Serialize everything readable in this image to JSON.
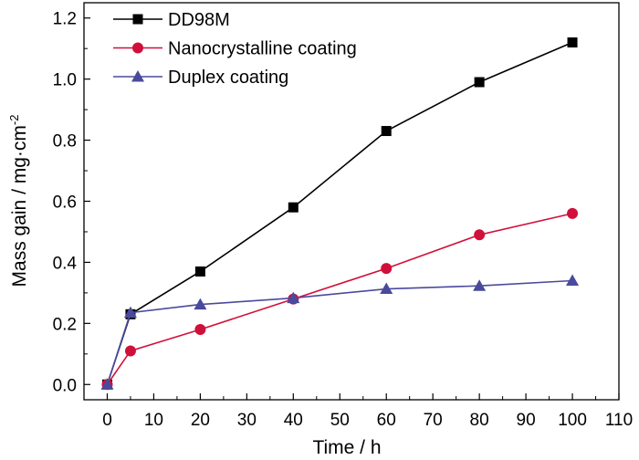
{
  "chart_data": {
    "type": "line",
    "title": "",
    "xlabel": "Time / h",
    "ylabel_main": "Mass gain / mg·cm",
    "ylabel_sup": "-2",
    "xlim": [
      -5,
      110
    ],
    "ylim": [
      -0.05,
      1.25
    ],
    "xticks": [
      0,
      10,
      20,
      30,
      40,
      50,
      60,
      70,
      80,
      90,
      100,
      110
    ],
    "yticks": [
      0.0,
      0.2,
      0.4,
      0.6,
      0.8,
      1.0,
      1.2
    ],
    "ytick_labels": [
      "0.0",
      "0.2",
      "0.4",
      "0.6",
      "0.8",
      "1.0",
      "1.2"
    ],
    "grid": false,
    "legend_position": "top-left",
    "series": [
      {
        "name": "DD98M",
        "color": "#000000",
        "marker": "square",
        "x": [
          0,
          5,
          20,
          40,
          60,
          80,
          100
        ],
        "y": [
          0.0,
          0.23,
          0.37,
          0.58,
          0.83,
          0.99,
          1.12
        ]
      },
      {
        "name": "Nanocrystalline coating",
        "color": "#d0103a",
        "marker": "circle",
        "x": [
          0,
          5,
          20,
          40,
          60,
          80,
          100
        ],
        "y": [
          0.0,
          0.11,
          0.18,
          0.28,
          0.38,
          0.49,
          0.56
        ]
      },
      {
        "name": "Duplex coating",
        "color": "#4a4a9c",
        "marker": "triangle",
        "x": [
          0,
          5,
          20,
          40,
          60,
          80,
          100
        ],
        "y": [
          0.0,
          0.235,
          0.262,
          0.283,
          0.313,
          0.323,
          0.34
        ]
      }
    ]
  }
}
